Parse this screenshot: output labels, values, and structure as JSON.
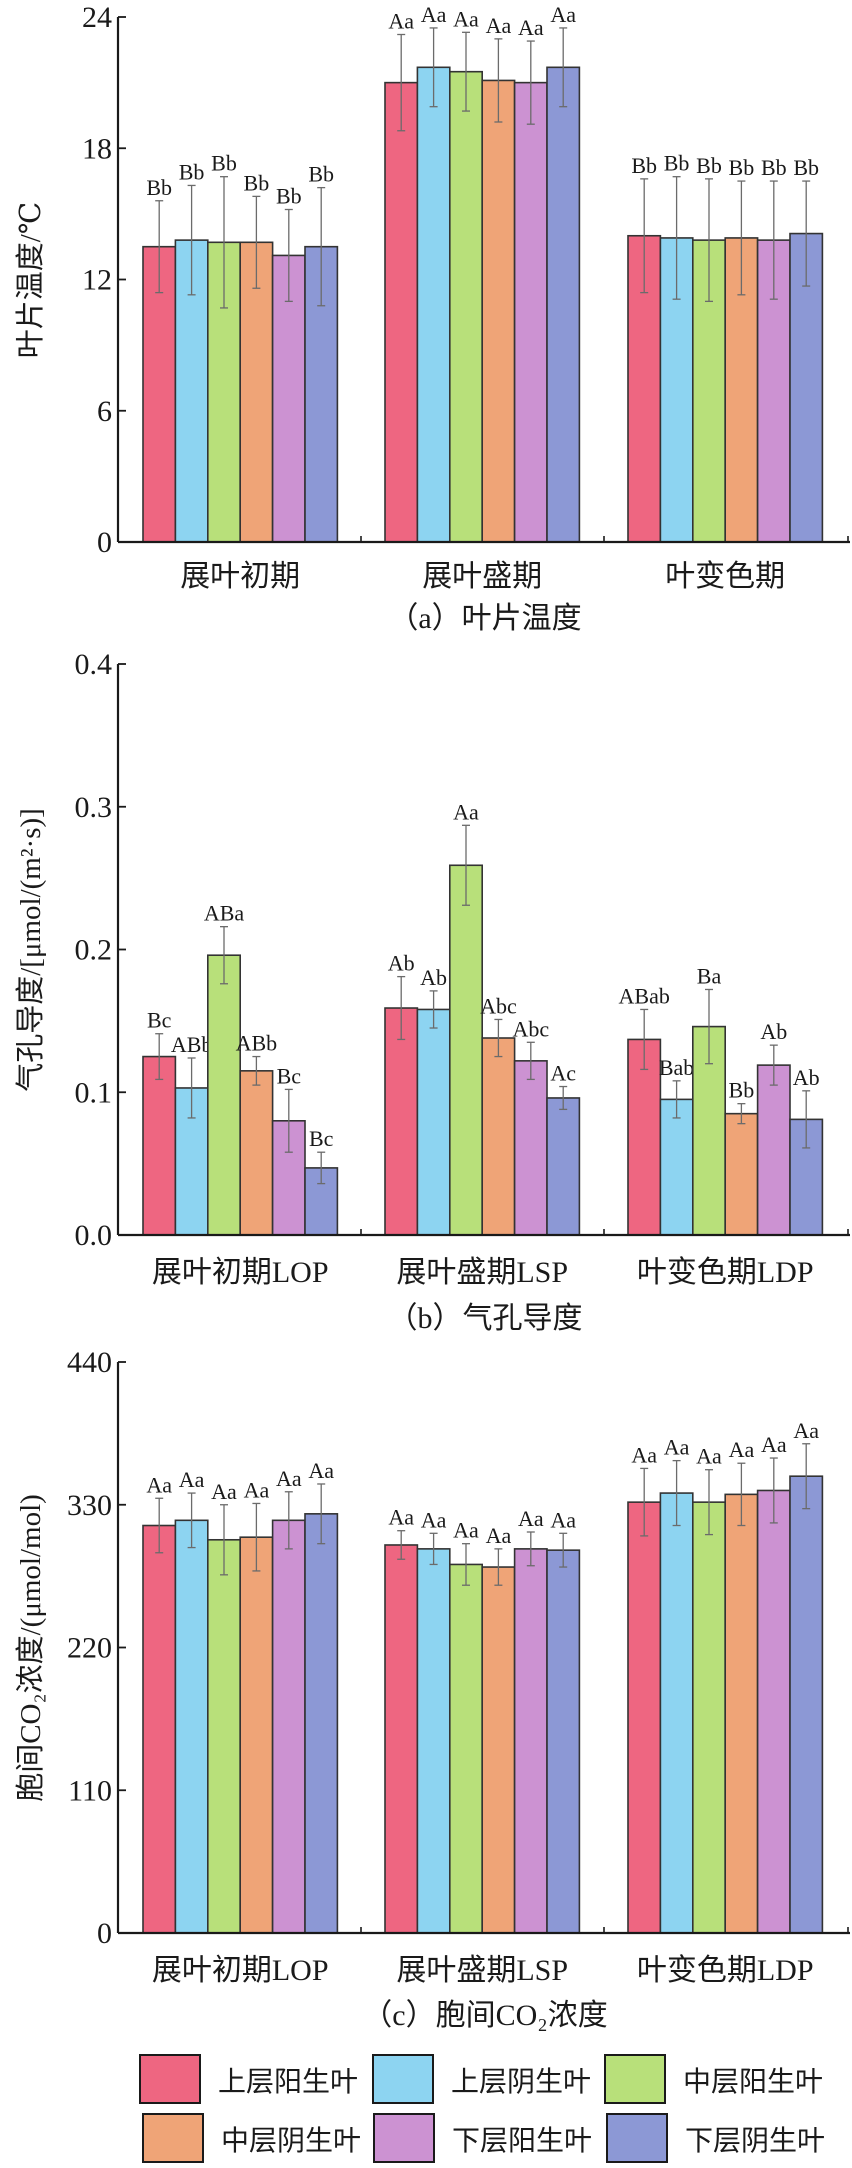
{
  "legend": [
    {
      "name": "上层阳生叶",
      "color": "#EE6681"
    },
    {
      "name": "上层阴生叶",
      "color": "#8DD4F1"
    },
    {
      "name": "中层阳生叶",
      "color": "#B8E07A"
    },
    {
      "name": "中层阴生叶",
      "color": "#EFA477"
    },
    {
      "name": "下层阳生叶",
      "color": "#CC92D2"
    },
    {
      "name": "下层阴生叶",
      "color": "#8C98D5"
    }
  ],
  "chart_data": [
    {
      "type": "bar",
      "title": "（a）叶片温度",
      "ylabel": "叶片温度/℃",
      "xlabel": "",
      "ylim": [
        0,
        24
      ],
      "yticks": [
        "0",
        "6",
        "12",
        "18",
        "24"
      ],
      "ytick_values": [
        0,
        6,
        12,
        18,
        24
      ],
      "categories": [
        "展叶初期",
        "展叶盛期",
        "叶变色期"
      ],
      "series": [
        {
          "name": "上层阳生叶",
          "values": [
            13.5,
            21.0,
            14.0
          ],
          "errors": [
            2.1,
            2.2,
            2.6
          ],
          "labels": [
            "Bb",
            "Aa",
            "Bb"
          ]
        },
        {
          "name": "上层阴生叶",
          "values": [
            13.8,
            21.7,
            13.9
          ],
          "errors": [
            2.5,
            1.8,
            2.8
          ],
          "labels": [
            "Bb",
            "Aa",
            "Bb"
          ]
        },
        {
          "name": "中层阳生叶",
          "values": [
            13.7,
            21.5,
            13.8
          ],
          "errors": [
            3.0,
            1.8,
            2.8
          ],
          "labels": [
            "Bb",
            "Aa",
            "Bb"
          ]
        },
        {
          "name": "中层阴生叶",
          "values": [
            13.7,
            21.1,
            13.9
          ],
          "errors": [
            2.1,
            1.9,
            2.6
          ],
          "labels": [
            "Bb",
            "Aa",
            "Bb"
          ]
        },
        {
          "name": "下层阳生叶",
          "values": [
            13.1,
            21.0,
            13.8
          ],
          "errors": [
            2.1,
            1.9,
            2.7
          ],
          "labels": [
            "Bb",
            "Aa",
            "Bb"
          ]
        },
        {
          "name": "下层阴生叶",
          "values": [
            13.5,
            21.7,
            14.1
          ],
          "errors": [
            2.7,
            1.8,
            2.4
          ],
          "labels": [
            "Bb",
            "Aa",
            "Bb"
          ]
        }
      ]
    },
    {
      "type": "bar",
      "title": "（b）气孔导度",
      "ylabel": "气孔导度/[μmol/(m²·s)]",
      "xlabel": "",
      "ylim": [
        0,
        0.4
      ],
      "yticks": [
        "0.0",
        "0.1",
        "0.2",
        "0.3",
        "0.4"
      ],
      "ytick_values": [
        0,
        0.1,
        0.2,
        0.3,
        0.4
      ],
      "categories": [
        "展叶初期LOP",
        "展叶盛期LSP",
        "叶变色期LDP"
      ],
      "series": [
        {
          "name": "上层阳生叶",
          "values": [
            0.125,
            0.159,
            0.137
          ],
          "errors": [
            0.016,
            0.022,
            0.021
          ],
          "labels": [
            "Bc",
            "Ab",
            "ABab"
          ]
        },
        {
          "name": "上层阴生叶",
          "values": [
            0.103,
            0.158,
            0.095
          ],
          "errors": [
            0.021,
            0.013,
            0.013
          ],
          "labels": [
            "ABb",
            "Ab",
            "Bab"
          ]
        },
        {
          "name": "中层阳生叶",
          "values": [
            0.196,
            0.259,
            0.146
          ],
          "errors": [
            0.02,
            0.028,
            0.026
          ],
          "labels": [
            "ABa",
            "Aa",
            "Ba"
          ]
        },
        {
          "name": "中层阴生叶",
          "values": [
            0.115,
            0.138,
            0.085
          ],
          "errors": [
            0.01,
            0.013,
            0.007
          ],
          "labels": [
            "ABb",
            "Abc",
            "Bb"
          ]
        },
        {
          "name": "下层阳生叶",
          "values": [
            0.08,
            0.122,
            0.119
          ],
          "errors": [
            0.022,
            0.013,
            0.014
          ],
          "labels": [
            "Bc",
            "Abc",
            "Ab"
          ]
        },
        {
          "name": "下层阴生叶",
          "values": [
            0.047,
            0.096,
            0.081
          ],
          "errors": [
            0.011,
            0.008,
            0.02
          ],
          "labels": [
            "Bc",
            "Ac",
            "Ab"
          ]
        }
      ]
    },
    {
      "type": "bar",
      "title": "（c）胞间CO₂浓度",
      "ylabel": "胞间CO₂浓度/(μmol/mol)",
      "xlabel": "",
      "ylim": [
        0,
        440
      ],
      "yticks": [
        "0",
        "110",
        "220",
        "330",
        "440"
      ],
      "ytick_values": [
        0,
        110,
        220,
        330,
        440
      ],
      "categories": [
        "展叶初期LOP",
        "展叶盛期LSP",
        "叶变色期LDP"
      ],
      "series": [
        {
          "name": "上层阳生叶",
          "values": [
            314,
            299,
            332
          ],
          "errors": [
            21,
            11,
            26
          ],
          "labels": [
            "Aa",
            "Aa",
            "Aa"
          ]
        },
        {
          "name": "上层阴生叶",
          "values": [
            318,
            296,
            339
          ],
          "errors": [
            21,
            12,
            25
          ],
          "labels": [
            "Aa",
            "Aa",
            "Aa"
          ]
        },
        {
          "name": "中层阳生叶",
          "values": [
            303,
            284,
            332
          ],
          "errors": [
            27,
            16,
            25
          ],
          "labels": [
            "Aa",
            "Aa",
            "Aa"
          ]
        },
        {
          "name": "中层阴生叶",
          "values": [
            305,
            282,
            338
          ],
          "errors": [
            26,
            14,
            24
          ],
          "labels": [
            "Aa",
            "Aa",
            "Aa"
          ]
        },
        {
          "name": "下层阳生叶",
          "values": [
            318,
            296,
            341
          ],
          "errors": [
            22,
            13,
            25
          ],
          "labels": [
            "Aa",
            "Aa",
            "Aa"
          ]
        },
        {
          "name": "下层阴生叶",
          "values": [
            323,
            295,
            352
          ],
          "errors": [
            23,
            13,
            25
          ],
          "labels": [
            "Aa",
            "Aa",
            "Aa"
          ]
        }
      ]
    }
  ]
}
